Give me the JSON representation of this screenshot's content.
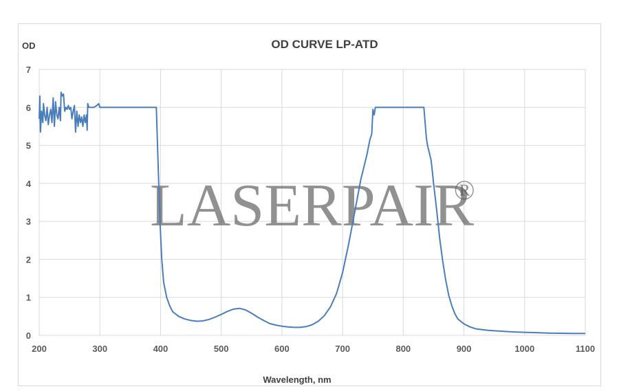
{
  "chart_data": {
    "type": "line",
    "title": "OD CURVE LP-ATD",
    "xlabel": "Wavelength, nm",
    "ylabel": "OD",
    "xlim": [
      200,
      1100
    ],
    "ylim": [
      0,
      7
    ],
    "xticks": [
      "200",
      "300",
      "400",
      "500",
      "600",
      "700",
      "800",
      "900",
      "1000",
      "1100"
    ],
    "yticks": [
      "0",
      "1",
      "2",
      "3",
      "4",
      "5",
      "6",
      "7"
    ],
    "grid": true,
    "watermark": "LASERPAIR",
    "watermark_mark": "®",
    "series": [
      {
        "color": "#4a7ebb",
        "points": [
          [
            200,
            5.7
          ],
          [
            201,
            6.3
          ],
          [
            202,
            5.35
          ],
          [
            204,
            5.9
          ],
          [
            206,
            5.6
          ],
          [
            207,
            6.1
          ],
          [
            209,
            5.8
          ],
          [
            211,
            5.65
          ],
          [
            213,
            6.0
          ],
          [
            215,
            5.55
          ],
          [
            217,
            5.8
          ],
          [
            219,
            5.95
          ],
          [
            221,
            5.6
          ],
          [
            223,
            6.25
          ],
          [
            225,
            5.5
          ],
          [
            227,
            6.15
          ],
          [
            229,
            5.8
          ],
          [
            231,
            5.7
          ],
          [
            233,
            6.0
          ],
          [
            235,
            5.65
          ],
          [
            236,
            6.4
          ],
          [
            238,
            6.3
          ],
          [
            240,
            6.35
          ],
          [
            242,
            5.9
          ],
          [
            244,
            6.0
          ],
          [
            246,
            5.95
          ],
          [
            248,
            6.05
          ],
          [
            250,
            5.95
          ],
          [
            252,
            6.0
          ],
          [
            254,
            5.7
          ],
          [
            256,
            5.9
          ],
          [
            258,
            6.05
          ],
          [
            260,
            5.35
          ],
          [
            262,
            5.9
          ],
          [
            264,
            5.5
          ],
          [
            266,
            5.8
          ],
          [
            268,
            5.6
          ],
          [
            270,
            5.75
          ],
          [
            272,
            5.5
          ],
          [
            274,
            5.8
          ],
          [
            276,
            5.6
          ],
          [
            278,
            5.8
          ],
          [
            279,
            5.4
          ],
          [
            280,
            6.1
          ],
          [
            282,
            6.0
          ],
          [
            285,
            6.0
          ],
          [
            290,
            6.0
          ],
          [
            295,
            6.05
          ],
          [
            298,
            6.1
          ],
          [
            300,
            6.0
          ],
          [
            320,
            6.0
          ],
          [
            340,
            6.0
          ],
          [
            360,
            6.0
          ],
          [
            380,
            6.0
          ],
          [
            393,
            6.0
          ],
          [
            396,
            4.5
          ],
          [
            399,
            3.0
          ],
          [
            402,
            2.0
          ],
          [
            405,
            1.4
          ],
          [
            410,
            1.0
          ],
          [
            415,
            0.78
          ],
          [
            420,
            0.62
          ],
          [
            430,
            0.5
          ],
          [
            440,
            0.43
          ],
          [
            450,
            0.39
          ],
          [
            460,
            0.37
          ],
          [
            470,
            0.38
          ],
          [
            480,
            0.42
          ],
          [
            490,
            0.48
          ],
          [
            500,
            0.55
          ],
          [
            510,
            0.63
          ],
          [
            520,
            0.69
          ],
          [
            530,
            0.71
          ],
          [
            540,
            0.67
          ],
          [
            550,
            0.58
          ],
          [
            560,
            0.48
          ],
          [
            570,
            0.39
          ],
          [
            580,
            0.31
          ],
          [
            590,
            0.27
          ],
          [
            600,
            0.24
          ],
          [
            610,
            0.22
          ],
          [
            620,
            0.21
          ],
          [
            630,
            0.21
          ],
          [
            640,
            0.23
          ],
          [
            650,
            0.28
          ],
          [
            660,
            0.37
          ],
          [
            670,
            0.52
          ],
          [
            680,
            0.75
          ],
          [
            690,
            1.1
          ],
          [
            700,
            1.65
          ],
          [
            710,
            2.4
          ],
          [
            720,
            3.25
          ],
          [
            730,
            4.1
          ],
          [
            740,
            4.75
          ],
          [
            745,
            5.15
          ],
          [
            748,
            5.3
          ],
          [
            750,
            5.95
          ],
          [
            752,
            5.8
          ],
          [
            754,
            6.0
          ],
          [
            760,
            6.0
          ],
          [
            780,
            6.0
          ],
          [
            800,
            6.0
          ],
          [
            820,
            6.0
          ],
          [
            834,
            6.0
          ],
          [
            836,
            5.6
          ],
          [
            838,
            5.2
          ],
          [
            840,
            5.0
          ],
          [
            843,
            4.8
          ],
          [
            846,
            4.6
          ],
          [
            848,
            4.3
          ],
          [
            850,
            4.0
          ],
          [
            855,
            3.3
          ],
          [
            860,
            2.55
          ],
          [
            865,
            1.95
          ],
          [
            870,
            1.45
          ],
          [
            875,
            1.05
          ],
          [
            880,
            0.78
          ],
          [
            885,
            0.57
          ],
          [
            890,
            0.43
          ],
          [
            900,
            0.3
          ],
          [
            910,
            0.22
          ],
          [
            920,
            0.17
          ],
          [
            940,
            0.13
          ],
          [
            960,
            0.11
          ],
          [
            980,
            0.09
          ],
          [
            1000,
            0.08
          ],
          [
            1020,
            0.07
          ],
          [
            1040,
            0.06
          ],
          [
            1060,
            0.055
          ],
          [
            1080,
            0.05
          ],
          [
            1100,
            0.05
          ]
        ]
      }
    ]
  }
}
